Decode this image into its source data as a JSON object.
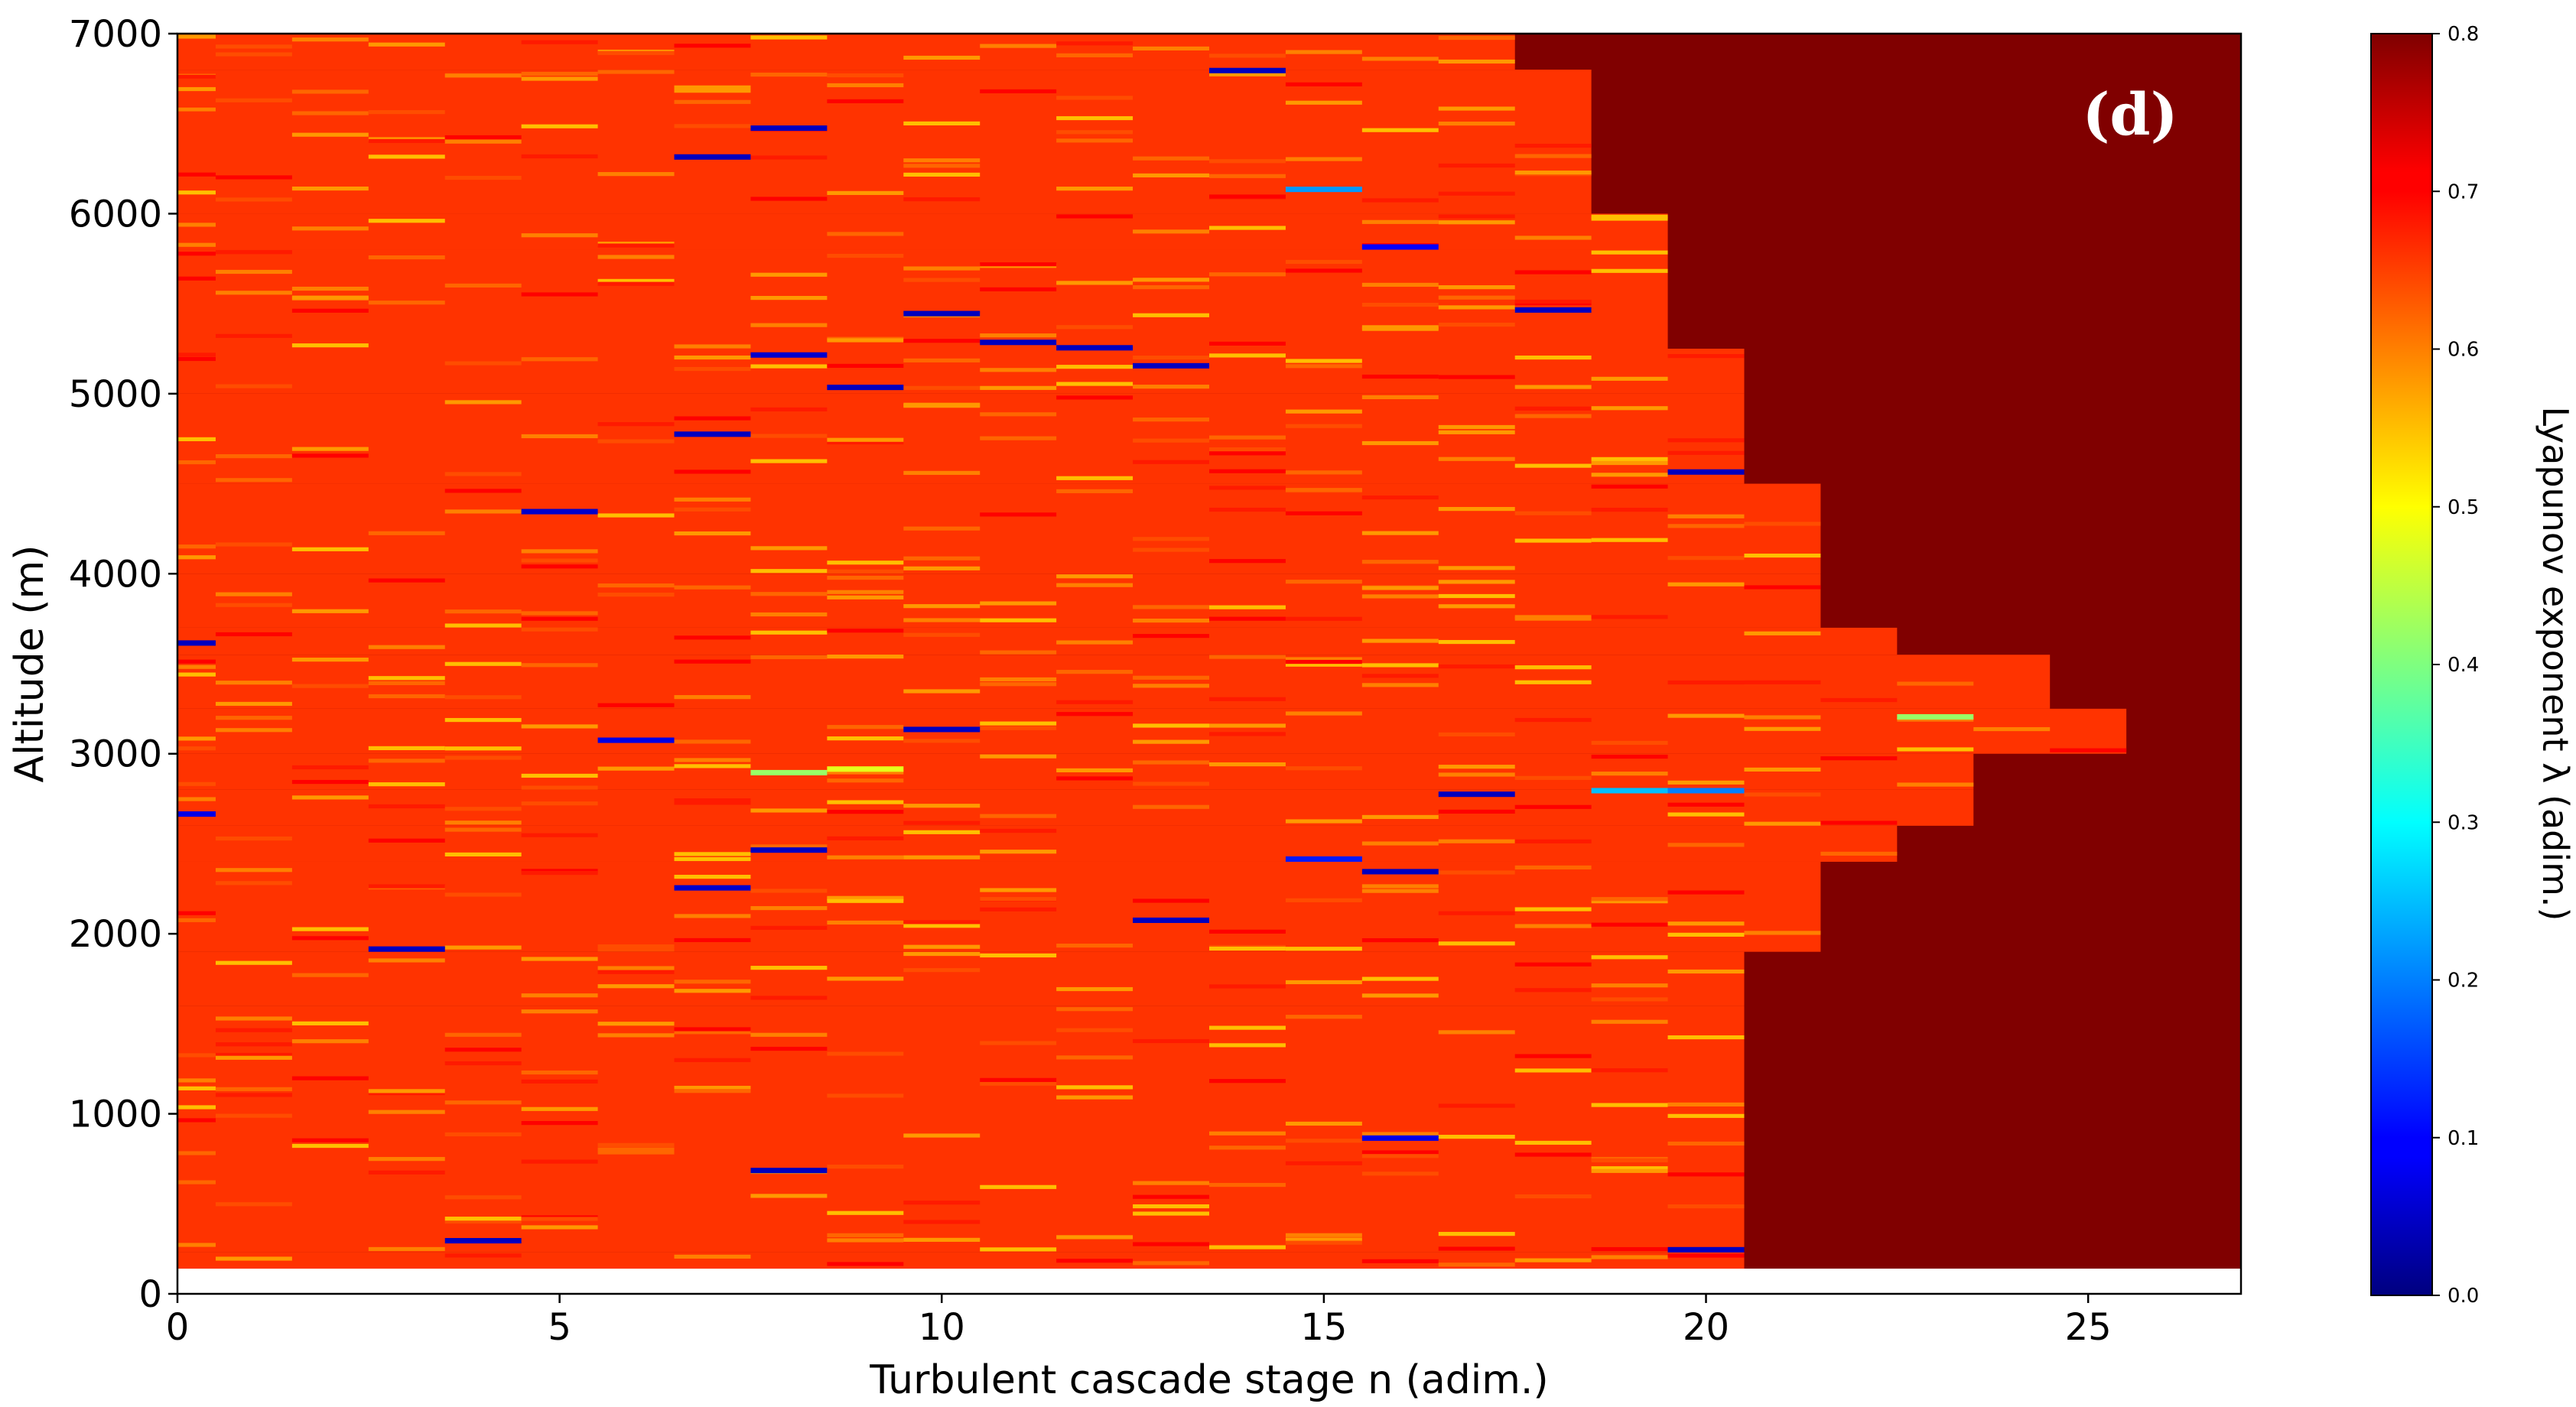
{
  "chart_data": {
    "type": "heatmap",
    "panel_label": "(d)",
    "xlabel": "Turbulent cascade stage n (adim.)",
    "ylabel": "Altitude (m)",
    "colorbar_label": "Lyapunov exponent λ (adim.)",
    "xlim": [
      0,
      27
    ],
    "ylim": [
      0,
      7000
    ],
    "data_altitude_range": [
      140,
      7000
    ],
    "x_ticks": [
      0,
      5,
      10,
      15,
      20,
      25
    ],
    "x_tick_labels": [
      "0",
      "5",
      "10",
      "15",
      "20",
      "25"
    ],
    "y_ticks": [
      0,
      1000,
      2000,
      3000,
      4000,
      5000,
      6000,
      7000
    ],
    "y_tick_labels": [
      "0",
      "1000",
      "2000",
      "3000",
      "4000",
      "5000",
      "6000",
      "7000"
    ],
    "colorbar_range": [
      0.0,
      0.8
    ],
    "colorbar_ticks": [
      0.0,
      0.1,
      0.2,
      0.3,
      0.4,
      0.5,
      0.6,
      0.7,
      0.8
    ],
    "colorbar_tick_labels": [
      "0.0",
      "0.1",
      "0.2",
      "0.3",
      "0.4",
      "0.5",
      "0.6",
      "0.7",
      "0.8"
    ],
    "colormap": "jet",
    "background_value": 0.66,
    "saturated_value": 0.8,
    "cascade_extent": [
      {
        "y_from": 140,
        "y_to": 230,
        "max_stage": 20
      },
      {
        "y_from": 230,
        "y_to": 1600,
        "max_stage": 20
      },
      {
        "y_from": 1600,
        "y_to": 1900,
        "max_stage": 20
      },
      {
        "y_from": 1900,
        "y_to": 2400,
        "max_stage": 21
      },
      {
        "y_from": 2400,
        "y_to": 2600,
        "max_stage": 22
      },
      {
        "y_from": 2600,
        "y_to": 2800,
        "max_stage": 23
      },
      {
        "y_from": 2800,
        "y_to": 3000,
        "max_stage": 23
      },
      {
        "y_from": 3000,
        "y_to": 3250,
        "max_stage": 25
      },
      {
        "y_from": 3250,
        "y_to": 3550,
        "max_stage": 24
      },
      {
        "y_from": 3550,
        "y_to": 3700,
        "max_stage": 22
      },
      {
        "y_from": 3700,
        "y_to": 4000,
        "max_stage": 21
      },
      {
        "y_from": 4000,
        "y_to": 4500,
        "max_stage": 21
      },
      {
        "y_from": 4500,
        "y_to": 5000,
        "max_stage": 20
      },
      {
        "y_from": 5000,
        "y_to": 5250,
        "max_stage": 20
      },
      {
        "y_from": 5250,
        "y_to": 5800,
        "max_stage": 19
      },
      {
        "y_from": 5800,
        "y_to": 6000,
        "max_stage": 19
      },
      {
        "y_from": 6000,
        "y_to": 6800,
        "max_stage": 18
      },
      {
        "y_from": 6800,
        "y_to": 7000,
        "max_stage": 17
      }
    ],
    "notable_values": [
      {
        "stage": 0,
        "altitude": 2650,
        "value": 0.08
      },
      {
        "stage": 0,
        "altitude": 3600,
        "value": 0.05
      },
      {
        "stage": 3,
        "altitude": 1900,
        "value": 0.05
      },
      {
        "stage": 4,
        "altitude": 280,
        "value": 0.05
      },
      {
        "stage": 5,
        "altitude": 4330,
        "value": 0.06
      },
      {
        "stage": 6,
        "altitude": 3060,
        "value": 0.08
      },
      {
        "stage": 7,
        "altitude": 6300,
        "value": 0.05
      },
      {
        "stage": 7,
        "altitude": 4760,
        "value": 0.05
      },
      {
        "stage": 7,
        "altitude": 2240,
        "value": 0.06
      },
      {
        "stage": 8,
        "altitude": 6460,
        "value": 0.05
      },
      {
        "stage": 8,
        "altitude": 5200,
        "value": 0.06
      },
      {
        "stage": 8,
        "altitude": 2880,
        "value": 0.42
      },
      {
        "stage": 8,
        "altitude": 2450,
        "value": 0.05
      },
      {
        "stage": 8,
        "altitude": 670,
        "value": 0.05
      },
      {
        "stage": 9,
        "altitude": 5020,
        "value": 0.05
      },
      {
        "stage": 9,
        "altitude": 2900,
        "value": 0.48
      },
      {
        "stage": 10,
        "altitude": 5430,
        "value": 0.05
      },
      {
        "stage": 10,
        "altitude": 3120,
        "value": 0.05
      },
      {
        "stage": 11,
        "altitude": 5270,
        "value": 0.05
      },
      {
        "stage": 12,
        "altitude": 5240,
        "value": 0.05
      },
      {
        "stage": 13,
        "altitude": 5140,
        "value": 0.05
      },
      {
        "stage": 13,
        "altitude": 2060,
        "value": 0.05
      },
      {
        "stage": 14,
        "altitude": 6780,
        "value": 0.05
      },
      {
        "stage": 15,
        "altitude": 6120,
        "value": 0.22
      },
      {
        "stage": 15,
        "altitude": 2400,
        "value": 0.12
      },
      {
        "stage": 16,
        "altitude": 5800,
        "value": 0.1
      },
      {
        "stage": 16,
        "altitude": 2330,
        "value": 0.05
      },
      {
        "stage": 16,
        "altitude": 850,
        "value": 0.08
      },
      {
        "stage": 17,
        "altitude": 2760,
        "value": 0.05
      },
      {
        "stage": 18,
        "altitude": 5450,
        "value": 0.05
      },
      {
        "stage": 19,
        "altitude": 2780,
        "value": 0.25
      },
      {
        "stage": 20,
        "altitude": 2780,
        "value": 0.2
      },
      {
        "stage": 20,
        "altitude": 4550,
        "value": 0.05
      },
      {
        "stage": 20,
        "altitude": 230,
        "value": 0.05
      },
      {
        "stage": 23,
        "altitude": 3190,
        "value": 0.42
      }
    ]
  }
}
